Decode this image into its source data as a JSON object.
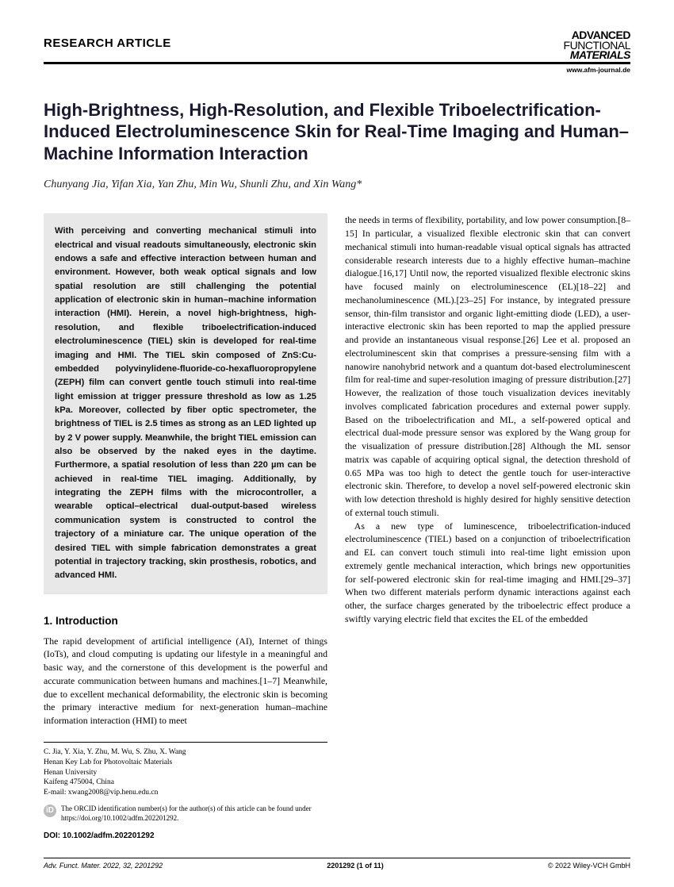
{
  "header": {
    "article_type": "RESEARCH ARTICLE",
    "brand_l1": "ADVANCED",
    "brand_l2": "FUNCTIONAL",
    "brand_l3": "MATERIALS",
    "url": "www.afm-journal.de"
  },
  "title": "High-Brightness, High-Resolution, and Flexible Triboelectrification-Induced Electroluminescence Skin for Real-Time Imaging and Human–Machine Information Interaction",
  "authors": "Chunyang Jia, Yifan Xia, Yan Zhu, Min Wu, Shunli Zhu, and Xin Wang*",
  "abstract": "With perceiving and converting mechanical stimuli into electrical and visual readouts simultaneously, electronic skin endows a safe and effective interaction between human and environment. However, both weak optical signals and low spatial resolution are still challenging the potential application of electronic skin in human–machine information interaction (HMI). Herein, a novel high-brightness, high-resolution, and flexible triboelectrification-induced electroluminescence (TIEL) skin is developed for real-time imaging and HMI. The TIEL skin composed of ZnS:Cu-embedded polyvinylidene-fluoride-co-hexafluoropropylene (ZEPH) film can convert gentle touch stimuli into real-time light emission at trigger pressure threshold as low as 1.25 kPa. Moreover, collected by fiber optic spectrometer, the brightness of TIEL is 2.5 times as strong as an LED lighted up by 2 V power supply. Meanwhile, the bright TIEL emission can also be observed by the naked eyes in the daytime. Furthermore, a spatial resolution of less than 220 µm can be achieved in real-time TIEL imaging. Additionally, by integrating the ZEPH films with the microcontroller, a wearable optical–electrical dual-output-based wireless communication system is constructed to control the trajectory of a miniature car. The unique operation of the desired TIEL with simple fabrication demonstrates a great potential in trajectory tracking, skin prosthesis, robotics, and advanced HMI.",
  "intro_heading": "1. Introduction",
  "intro_left": "The rapid development of artificial intelligence (AI), Internet of things (IoTs), and cloud computing is updating our lifestyle in a meaningful and basic way, and the cornerstone of this development is the powerful and accurate communication between humans and machines.[1–7] Meanwhile, due to excellent mechanical deformability, the electronic skin is becoming the primary interactive medium for next-generation human–machine information interaction (HMI) to meet",
  "right_col": "the needs in terms of flexibility, portability, and low power consumption.[8–15] In particular, a visualized flexible electronic skin that can convert mechanical stimuli into human-readable visual optical signals has attracted considerable research interests due to a highly effective human–machine dialogue.[16,17] Until now, the reported visualized flexible electronic skins have focused mainly on electroluminescence (EL)[18–22] and mechanoluminescence (ML).[23–25] For instance, by integrated pressure sensor, thin-film transistor and organic light-emitting diode (LED), a user-interactive electronic skin has been reported to map the applied pressure and provide an instantaneous visual response.[26] Lee et al. proposed an electroluminescent skin that comprises a pressure-sensing film with a nanowire nanohybrid network and a quantum dot-based electroluminescent film for real-time and super-resolution imaging of pressure distribution.[27] However, the realization of those touch visualization devices inevitably involves complicated fabrication procedures and external power supply. Based on the triboelectrification and ML, a self-powered optical and electrical dual-mode pressure sensor was explored by the Wang group for the visualization of pressure distribution.[28] Although the ML sensor matrix was capable of acquiring optical signal, the detection threshold of 0.65 MPa was too high to detect the gentle touch for user-interactive electronic skin. Therefore, to develop a novel self-powered electronic skin with low detection threshold is highly desired for highly sensitive detection of external touch stimuli.",
  "right_col_p2": "As a new type of luminescence, triboelectrification-induced electroluminescence (TIEL) based on a conjunction of triboelectrification and EL can convert touch stimuli into real-time light emission upon extremely gentle mechanical interaction, which brings new opportunities for self-powered electronic skin for real-time imaging and HMI.[29–37] When two different materials perform dynamic interactions against each other, the surface charges generated by the triboelectric effect produce a swiftly varying electric field that excites the EL of the embedded",
  "affil": {
    "names": "C. Jia, Y. Xia, Y. Zhu, M. Wu, S. Zhu, X. Wang",
    "lab": "Henan Key Lab for Photovoltaic Materials",
    "uni": "Henan University",
    "city": "Kaifeng 475004, China",
    "email": "E-mail: xwang2008@vip.henu.edu.cn"
  },
  "orcid_text": "The ORCID identification number(s) for the author(s) of this article can be found under https://doi.org/10.1002/adfm.202201292.",
  "doi": "DOI: 10.1002/adfm.202201292",
  "footer": {
    "left": "Adv. Funct. Mater. 2022, 32, 2201292",
    "center": "2201292 (1 of 11)",
    "right": "© 2022 Wiley-VCH GmbH"
  }
}
